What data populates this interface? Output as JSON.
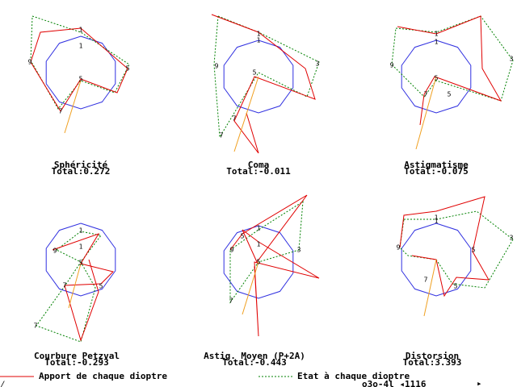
{
  "panels": [
    {
      "title": "Sphéricité",
      "total": "Total:0.272",
      "labels": [
        "1",
        "1",
        "5",
        "5",
        "7",
        "9"
      ]
    },
    {
      "title": "Coma",
      "total": "Total:-0.011",
      "labels": [
        "1",
        "1",
        "5",
        "3",
        "7",
        "9",
        "7"
      ]
    },
    {
      "title": "Astigmatisme",
      "total": "Total:-0.075",
      "labels": [
        "1",
        "1",
        "5",
        "3",
        "7",
        "9",
        "5"
      ]
    },
    {
      "title": "Courbure Petzval",
      "total": "Total:-0.293",
      "labels": [
        "1",
        "1",
        "9",
        "5",
        "7",
        "5",
        "7"
      ]
    },
    {
      "title": "Astig. Moyen (P+2A)",
      "total": "Total:-0.443",
      "labels": [
        "1",
        "1",
        "5",
        "9",
        "3",
        "5",
        "7"
      ]
    },
    {
      "title": "Distorsion",
      "total": "Total:3.393",
      "labels": [
        "1",
        "1",
        "5",
        "3",
        "7",
        "9",
        "5"
      ]
    }
  ],
  "legend": {
    "contribution": "Apport de chaque dioptre",
    "state": "Etat à chaque dioptre"
  },
  "corner": "⁄_",
  "status": "o3o-4l ◂1116",
  "arrow": "▸"
}
